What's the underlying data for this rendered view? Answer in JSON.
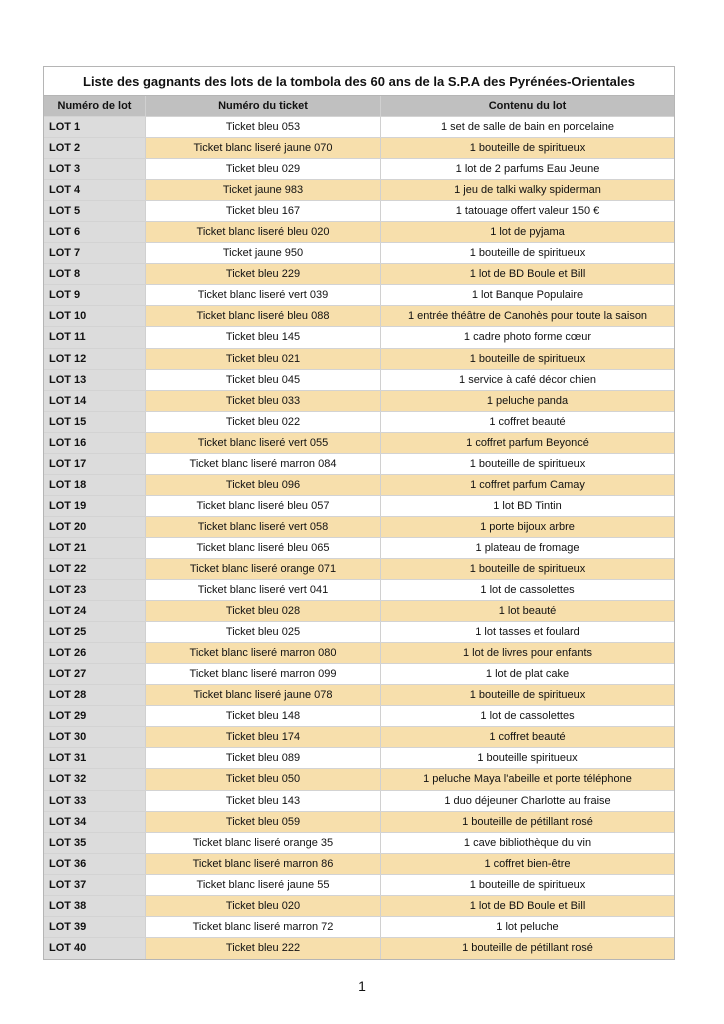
{
  "title": "Liste des gagnants des lots de la tombola des 60 ans de la S.P.A des Pyrénées-Orientales",
  "headers": [
    "Numéro de lot",
    "Numéro du ticket",
    "Contenu du lot"
  ],
  "colors": {
    "header_bg": "#c0c0c0",
    "lot_col_bg": "#dcdcdc",
    "alt_row_bg": "#f7dfac"
  },
  "rows": [
    [
      "LOT 1",
      "Ticket bleu 053",
      "1 set de salle de bain en porcelaine"
    ],
    [
      "LOT 2",
      "Ticket blanc liseré jaune 070",
      "1 bouteille de spiritueux"
    ],
    [
      "LOT 3",
      "Ticket bleu 029",
      "1 lot de 2 parfums Eau Jeune"
    ],
    [
      "LOT 4",
      "Ticket jaune 983",
      "1 jeu de talki walky spiderman"
    ],
    [
      "LOT 5",
      "Ticket bleu 167",
      "1 tatouage offert valeur 150 €"
    ],
    [
      "LOT 6",
      "Ticket blanc liseré bleu 020",
      "1 lot de pyjama"
    ],
    [
      "LOT 7",
      "Ticket jaune 950",
      "1 bouteille de spiritueux"
    ],
    [
      "LOT 8",
      "Ticket bleu 229",
      "1 lot de BD Boule et Bill"
    ],
    [
      "LOT 9",
      "Ticket blanc liseré vert 039",
      "1 lot Banque Populaire"
    ],
    [
      "LOT 10",
      "Ticket blanc liseré bleu 088",
      "1 entrée théâtre de Canohès pour toute la saison"
    ],
    [
      "LOT 11",
      "Ticket bleu 145",
      "1 cadre photo forme cœur"
    ],
    [
      "LOT 12",
      "Ticket bleu 021",
      "1 bouteille de spiritueux"
    ],
    [
      "LOT 13",
      "Ticket bleu 045",
      "1 service à café décor chien"
    ],
    [
      "LOT 14",
      "Ticket bleu 033",
      "1 peluche panda"
    ],
    [
      "LOT 15",
      "Ticket bleu 022",
      "1 coffret beauté"
    ],
    [
      "LOT 16",
      "Ticket blanc liseré vert 055",
      "1 coffret parfum Beyoncé"
    ],
    [
      "LOT 17",
      "Ticket blanc liseré marron 084",
      "1 bouteille de spiritueux"
    ],
    [
      "LOT 18",
      "Ticket bleu 096",
      "1 coffret parfum Camay"
    ],
    [
      "LOT 19",
      "Ticket blanc liseré bleu 057",
      "1 lot BD Tintin"
    ],
    [
      "LOT 20",
      "Ticket blanc liseré vert 058",
      "1 porte bijoux arbre"
    ],
    [
      "LOT 21",
      "Ticket blanc liseré bleu 065",
      "1 plateau de fromage"
    ],
    [
      "LOT 22",
      "Ticket blanc liseré orange 071",
      "1 bouteille de spiritueux"
    ],
    [
      "LOT 23",
      "Ticket blanc liseré vert 041",
      "1 lot de cassolettes"
    ],
    [
      "LOT 24",
      "Ticket bleu 028",
      "1 lot beauté"
    ],
    [
      "LOT 25",
      "Ticket bleu 025",
      "1 lot tasses et foulard"
    ],
    [
      "LOT 26",
      "Ticket blanc liseré marron 080",
      "1 lot de livres pour enfants"
    ],
    [
      "LOT 27",
      "Ticket blanc liseré marron 099",
      "1 lot de plat cake"
    ],
    [
      "LOT 28",
      "Ticket blanc liseré jaune 078",
      "1 bouteille de spiritueux"
    ],
    [
      "LOT 29",
      "Ticket bleu 148",
      "1 lot de cassolettes"
    ],
    [
      "LOT 30",
      "Ticket bleu 174",
      "1 coffret beauté"
    ],
    [
      "LOT 31",
      "Ticket bleu 089",
      "1 bouteille spiritueux"
    ],
    [
      "LOT 32",
      "Ticket bleu 050",
      "1 peluche Maya l'abeille et porte téléphone"
    ],
    [
      "LOT 33",
      "Ticket bleu 143",
      "1 duo déjeuner Charlotte au fraise"
    ],
    [
      "LOT 34",
      "Ticket bleu 059",
      "1 bouteille de pétillant rosé"
    ],
    [
      "LOT 35",
      "Ticket blanc liseré orange 35",
      "1 cave bibliothèque du vin"
    ],
    [
      "LOT 36",
      "Ticket blanc liseré marron 86",
      "1 coffret bien-être"
    ],
    [
      "LOT 37",
      "Ticket blanc liseré jaune 55",
      "1 bouteille de spiritueux"
    ],
    [
      "LOT 38",
      "Ticket bleu 020",
      "1 lot de BD Boule et Bill"
    ],
    [
      "LOT 39",
      "Ticket blanc liseré marron 72",
      "1 lot peluche"
    ],
    [
      "LOT 40",
      "Ticket bleu 222",
      "1 bouteille de pétillant rosé"
    ]
  ],
  "page_number": "1"
}
